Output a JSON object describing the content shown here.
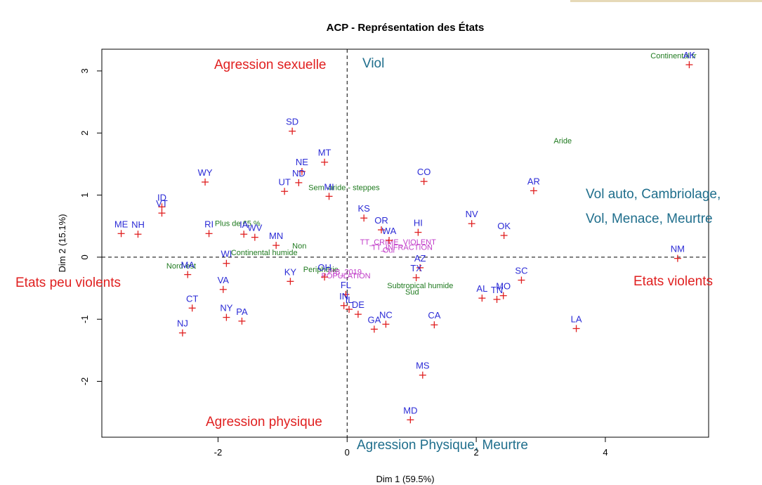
{
  "colors": {
    "point": "#e02020",
    "state_label": "#2b2bd6",
    "supplementary": "#1f7a1f",
    "purple": "#c03cc8",
    "annotation_red": "#e02020",
    "annotation_blue": "#1f6e8c"
  },
  "chart_data": {
    "type": "scatter",
    "title": "ACP - Représentation des États",
    "xlabel": "Dim 1 (59.5%)",
    "ylabel": "Dim 2 (15.1%)",
    "xlim": [
      -3.8,
      5.6
    ],
    "ylim": [
      -2.9,
      3.35
    ],
    "x_ticks": [
      -2,
      0,
      2,
      4
    ],
    "y_ticks": [
      -2,
      -1,
      0,
      1,
      2,
      3
    ],
    "x_tick_labels": [
      "-2",
      "0",
      "2",
      "4"
    ],
    "y_tick_labels": [
      "-2",
      "-1",
      "0",
      "1",
      "2",
      "3"
    ],
    "grid": false,
    "reference_lines": [
      "x = 0",
      "y = 0"
    ],
    "states": [
      {
        "label": "AK",
        "x": 5.3,
        "y": 3.1
      },
      {
        "label": "SD",
        "x": -0.85,
        "y": 2.03
      },
      {
        "label": "MT",
        "x": -0.35,
        "y": 1.53
      },
      {
        "label": "NE",
        "x": -0.7,
        "y": 1.38
      },
      {
        "label": "ND",
        "x": -0.75,
        "y": 1.2
      },
      {
        "label": "UT",
        "x": -0.97,
        "y": 1.06
      },
      {
        "label": "MI",
        "x": -0.28,
        "y": 0.98
      },
      {
        "label": "WY",
        "x": -2.2,
        "y": 1.21
      },
      {
        "label": "ID",
        "x": -2.87,
        "y": 0.81
      },
      {
        "label": "VT",
        "x": -2.87,
        "y": 0.71
      },
      {
        "label": "ME",
        "x": -3.5,
        "y": 0.38
      },
      {
        "label": "NH",
        "x": -3.24,
        "y": 0.37
      },
      {
        "label": "RI",
        "x": -2.14,
        "y": 0.38
      },
      {
        "label": "IA",
        "x": -1.6,
        "y": 0.37
      },
      {
        "label": "WV",
        "x": -1.43,
        "y": 0.32
      },
      {
        "label": "MN",
        "x": -1.1,
        "y": 0.19
      },
      {
        "label": "WI",
        "x": -1.87,
        "y": -0.1
      },
      {
        "label": "MA",
        "x": -2.47,
        "y": -0.28
      },
      {
        "label": "VA",
        "x": -1.92,
        "y": -0.52
      },
      {
        "label": "CT",
        "x": -2.4,
        "y": -0.82
      },
      {
        "label": "NY",
        "x": -1.87,
        "y": -0.97
      },
      {
        "label": "PA",
        "x": -1.63,
        "y": -1.03
      },
      {
        "label": "NJ",
        "x": -2.55,
        "y": -1.22
      },
      {
        "label": "KY",
        "x": -0.88,
        "y": -0.39
      },
      {
        "label": "OH",
        "x": -0.35,
        "y": -0.32
      },
      {
        "label": "FL",
        "x": -0.02,
        "y": -0.6
      },
      {
        "label": "IN",
        "x": -0.05,
        "y": -0.78
      },
      {
        "label": "IL",
        "x": 0.03,
        "y": -0.84
      },
      {
        "label": "DE",
        "x": 0.17,
        "y": -0.92
      },
      {
        "label": "GA",
        "x": 0.42,
        "y": -1.16
      },
      {
        "label": "NC",
        "x": 0.6,
        "y": -1.08
      },
      {
        "label": "CA",
        "x": 1.35,
        "y": -1.09
      },
      {
        "label": "MS",
        "x": 1.17,
        "y": -1.9
      },
      {
        "label": "MD",
        "x": 0.98,
        "y": -2.62
      },
      {
        "label": "KS",
        "x": 0.26,
        "y": 0.63
      },
      {
        "label": "OR",
        "x": 0.53,
        "y": 0.44
      },
      {
        "label": "WA",
        "x": 0.65,
        "y": 0.27
      },
      {
        "label": "HI",
        "x": 1.1,
        "y": 0.4
      },
      {
        "label": "CO",
        "x": 1.19,
        "y": 1.22
      },
      {
        "label": "NV",
        "x": 1.93,
        "y": 0.54
      },
      {
        "label": "OK",
        "x": 2.43,
        "y": 0.35
      },
      {
        "label": "AR",
        "x": 2.89,
        "y": 1.07
      },
      {
        "label": "AZ",
        "x": 1.13,
        "y": -0.17
      },
      {
        "label": "TX",
        "x": 1.07,
        "y": -0.33
      },
      {
        "label": "SC",
        "x": 2.7,
        "y": -0.37
      },
      {
        "label": "AL",
        "x": 2.09,
        "y": -0.66
      },
      {
        "label": "TN",
        "x": 2.32,
        "y": -0.68
      },
      {
        "label": "MO",
        "x": 2.42,
        "y": -0.62
      },
      {
        "label": "LA",
        "x": 3.55,
        "y": -1.15
      },
      {
        "label": "NM",
        "x": 5.12,
        "y": -0.02
      }
    ],
    "supplementary_labels": [
      {
        "label": "Continental fr",
        "x": 4.7,
        "y": 3.2
      },
      {
        "label": "Aride",
        "x": 3.2,
        "y": 1.83
      },
      {
        "label": "Semi-aride - steppes",
        "x": -0.6,
        "y": 1.08
      },
      {
        "label": "Plus de 65 %",
        "x": -2.05,
        "y": 0.5
      },
      {
        "label": "Non",
        "x": -0.85,
        "y": 0.14
      },
      {
        "label": "Continental humide",
        "x": -1.8,
        "y": 0.03
      },
      {
        "label": "Nord-est",
        "x": -2.8,
        "y": -0.18
      },
      {
        "label": "Periphérie",
        "x": -0.68,
        "y": -0.24
      },
      {
        "label": "Subtropical humide",
        "x": 0.62,
        "y": -0.5
      },
      {
        "label": "Sud",
        "x": 0.9,
        "y": -0.6
      }
    ],
    "purple_labels": [
      {
        "label": "TT_CRIME_VIOLENT",
        "x": 0.2,
        "y": 0.2
      },
      {
        "label": "TT_INFRACTION",
        "x": 0.38,
        "y": 0.12
      },
      {
        "label": "Oui",
        "x": 0.55,
        "y": 0.07
      },
      {
        "label": "POPULATION",
        "x": -0.4,
        "y": -0.34
      },
      {
        "label": "PIB_2019",
        "x": -0.3,
        "y": -0.28
      }
    ]
  },
  "annotations": [
    {
      "text": "Agression sexuelle",
      "color": "red"
    },
    {
      "text": "Viol",
      "color": "blue"
    },
    {
      "text": "Vol auto, Cambriolage,",
      "color": "blue"
    },
    {
      "text": "Vol, Menace, Meurtre",
      "color": "blue"
    },
    {
      "text": "Etats peu violents",
      "color": "red"
    },
    {
      "text": "Etats violents",
      "color": "red"
    },
    {
      "text": "Agression physique",
      "color": "red"
    },
    {
      "text": "Agression Physique, Meurtre",
      "color": "blue"
    }
  ]
}
